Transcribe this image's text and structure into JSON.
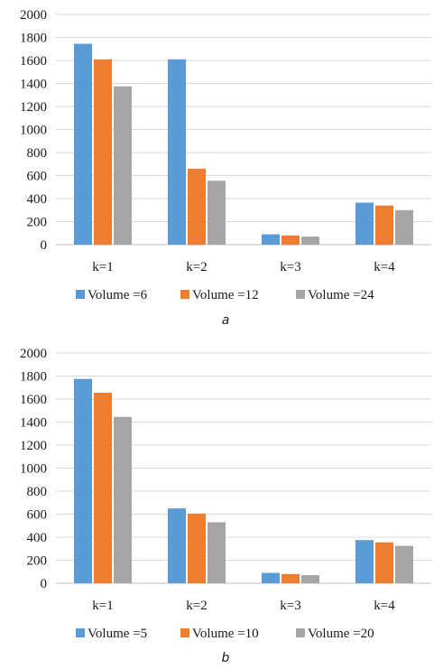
{
  "chart_data": [
    {
      "type": "bar",
      "caption": "a",
      "categories": [
        "k=1",
        "k=2",
        "k=3",
        "k=4"
      ],
      "ylim": [
        0,
        2000
      ],
      "yticks": [
        0,
        200,
        400,
        600,
        800,
        1000,
        1200,
        1400,
        1600,
        1800,
        2000
      ],
      "grid": true,
      "legend_position": "bottom",
      "series": [
        {
          "name": "Volume =6",
          "color": "#5b9bd5",
          "values": [
            1745,
            1610,
            90,
            365
          ]
        },
        {
          "name": "Volume =12",
          "color": "#ed7d31",
          "values": [
            1610,
            660,
            80,
            340
          ]
        },
        {
          "name": "Volume =24",
          "color": "#a5a5a5",
          "values": [
            1375,
            555,
            70,
            300
          ]
        }
      ]
    },
    {
      "type": "bar",
      "caption": "b",
      "categories": [
        "k=1",
        "k=2",
        "k=3",
        "k=4"
      ],
      "ylim": [
        0,
        2000
      ],
      "yticks": [
        0,
        200,
        400,
        600,
        800,
        1000,
        1200,
        1400,
        1600,
        1800,
        2000
      ],
      "grid": true,
      "legend_position": "bottom",
      "series": [
        {
          "name": "Volume =5",
          "color": "#5b9bd5",
          "values": [
            1775,
            650,
            90,
            375
          ]
        },
        {
          "name": "Volume =10",
          "color": "#ed7d31",
          "values": [
            1655,
            605,
            80,
            355
          ]
        },
        {
          "name": "Volume =20",
          "color": "#a5a5a5",
          "values": [
            1445,
            530,
            70,
            325
          ]
        }
      ]
    }
  ]
}
